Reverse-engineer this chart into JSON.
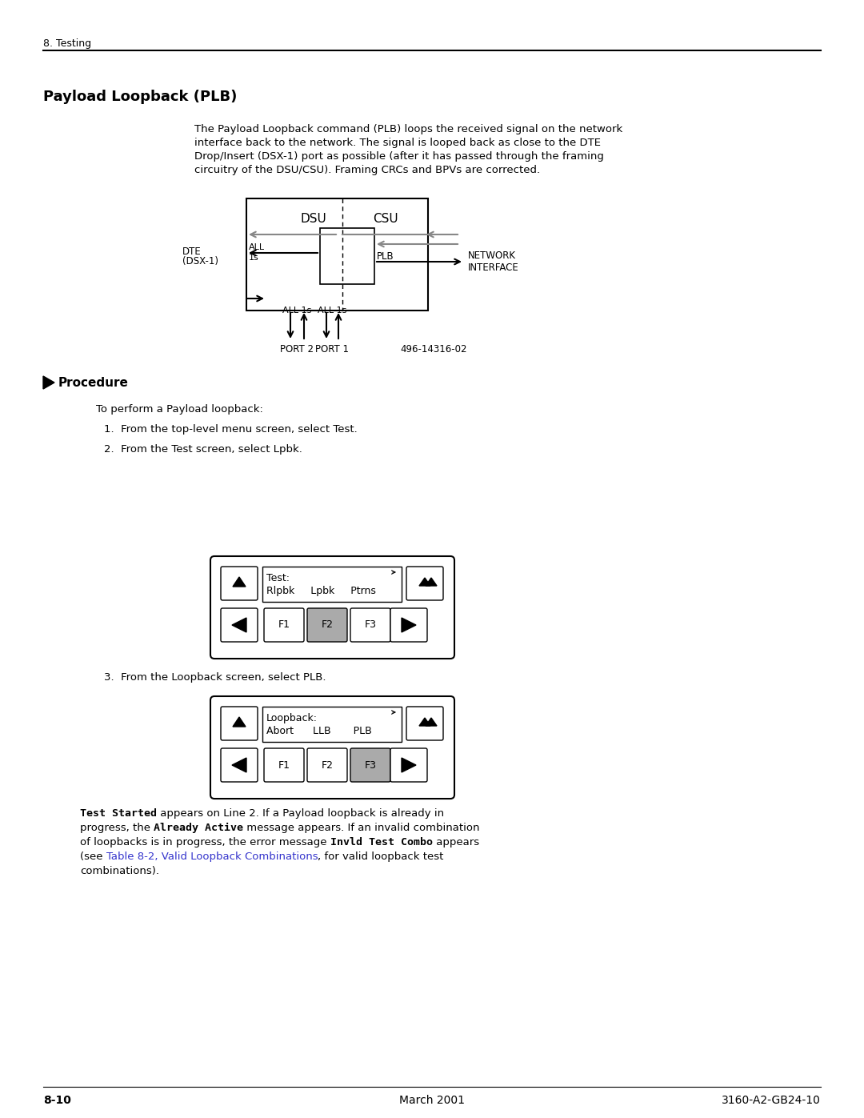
{
  "bg_color": "#ffffff",
  "header_text": "8. Testing",
  "section_title": "Payload Loopback (PLB)",
  "body_text_line1": "The Payload Loopback command (PLB) loops the received signal on the network",
  "body_text_line2": "interface back to the network. The signal is looped back as close to the DTE",
  "body_text_line3": "Drop/Insert (DSX-1) port as possible (after it has passed through the framing",
  "body_text_line4": "circuitry of the DSU/CSU). Framing CRCs and BPVs are corrected.",
  "procedure_text": "To perform a Payload loopback:",
  "step1": "1.  From the top-level menu screen, select Test.",
  "step2": "2.  From the Test screen, select Lpbk.",
  "step3": "3.  From the Loopback screen, select PLB.",
  "footer_left": "8-10",
  "footer_center": "March 2001",
  "footer_right": "3160-A2-GB24-10",
  "diagram_label": "496-14316-02"
}
